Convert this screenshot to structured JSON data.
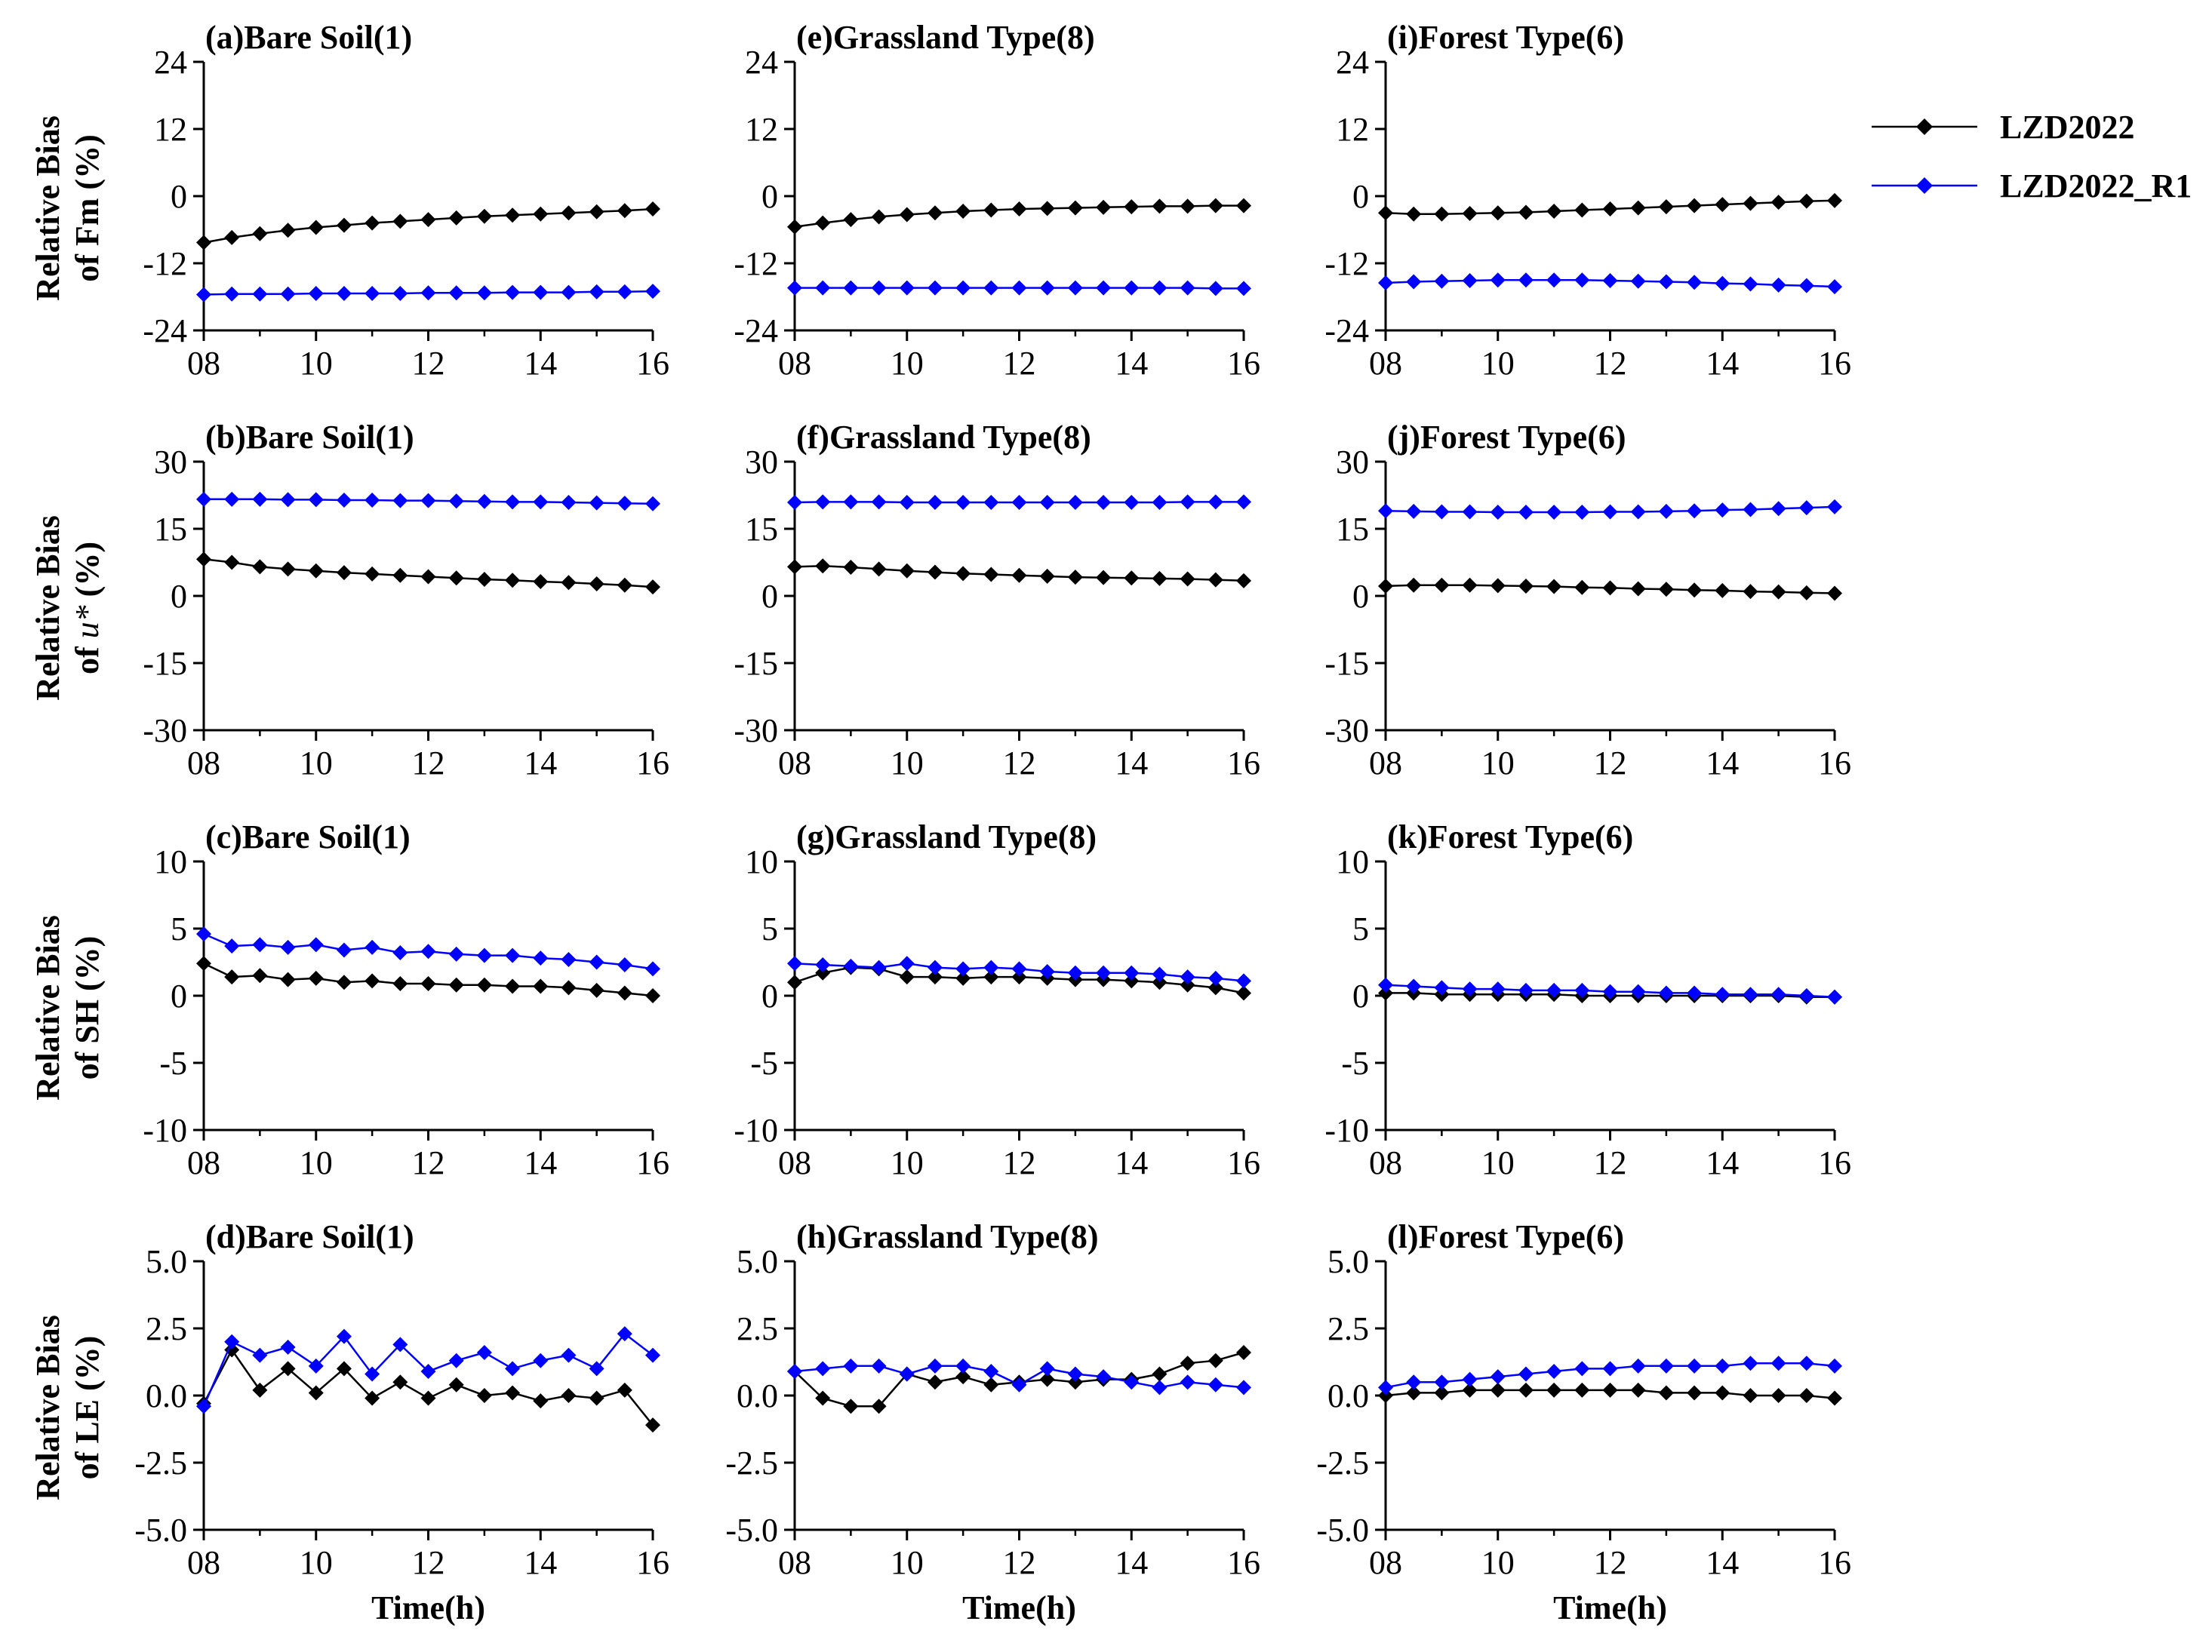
{
  "figure": {
    "x_title": "Time(h)",
    "row_ylabels": [
      [
        "Relative Bias",
        "of Fm (%)"
      ],
      [
        "Relative Bias",
        "of u* (%)"
      ],
      [
        "Relative Bias",
        "of SH (%)"
      ],
      [
        "Relative Bias",
        "of LE (%)"
      ]
    ]
  },
  "legend": {
    "entries": [
      {
        "label": "LZD2022",
        "color": "#000000",
        "marker": "diamond"
      },
      {
        "label": "LZD2022_R1",
        "color": "#0000ff",
        "marker": "diamond"
      }
    ]
  },
  "chart_data": [
    {
      "type": "line",
      "title": "(a)Bare Soil(1)",
      "xlabel": "",
      "ylabel": "Relative Bias of Fm (%)",
      "xlim": [
        8,
        16
      ],
      "ylim": [
        -24,
        24
      ],
      "yticks": [
        "24",
        "12",
        "0",
        "-12",
        "-24"
      ],
      "xticks": [
        "08",
        "10",
        "12",
        "14",
        "16"
      ],
      "x": [
        8,
        8.5,
        9,
        9.5,
        10,
        10.5,
        11,
        11.5,
        12,
        12.5,
        13,
        13.5,
        14,
        14.5,
        15,
        15.5,
        16
      ],
      "series": [
        {
          "name": "LZD2022",
          "color": "#000000",
          "values": [
            -8.3,
            -7.4,
            -6.7,
            -6.1,
            -5.6,
            -5.2,
            -4.8,
            -4.5,
            -4.2,
            -3.9,
            -3.6,
            -3.4,
            -3.2,
            -3.0,
            -2.8,
            -2.6,
            -2.3
          ]
        },
        {
          "name": "LZD2022_R1",
          "color": "#0000ff",
          "values": [
            -17.6,
            -17.5,
            -17.5,
            -17.5,
            -17.4,
            -17.4,
            -17.4,
            -17.4,
            -17.3,
            -17.3,
            -17.3,
            -17.2,
            -17.2,
            -17.2,
            -17.1,
            -17.1,
            -17.0
          ]
        }
      ]
    },
    {
      "type": "line",
      "title": "(b)Bare Soil(1)",
      "xlabel": "",
      "ylabel": "Relative Bias of u* (%)",
      "xlim": [
        8,
        16
      ],
      "ylim": [
        -30,
        30
      ],
      "yticks": [
        "30",
        "15",
        "0",
        "-15",
        "-30"
      ],
      "xticks": [
        "08",
        "10",
        "12",
        "14",
        "16"
      ],
      "x": [
        8,
        8.5,
        9,
        9.5,
        10,
        10.5,
        11,
        11.5,
        12,
        12.5,
        13,
        13.5,
        14,
        14.5,
        15,
        15.5,
        16
      ],
      "series": [
        {
          "name": "LZD2022",
          "color": "#000000",
          "values": [
            8.2,
            7.5,
            6.5,
            6.0,
            5.6,
            5.2,
            4.9,
            4.6,
            4.3,
            4.0,
            3.7,
            3.5,
            3.2,
            3.0,
            2.7,
            2.4,
            2.0
          ]
        },
        {
          "name": "LZD2022_R1",
          "color": "#0000ff",
          "values": [
            21.6,
            21.6,
            21.6,
            21.5,
            21.5,
            21.4,
            21.4,
            21.3,
            21.3,
            21.2,
            21.1,
            21.0,
            21.0,
            20.9,
            20.8,
            20.7,
            20.6
          ]
        }
      ]
    },
    {
      "type": "line",
      "title": "(c)Bare Soil(1)",
      "xlabel": "",
      "ylabel": "Relative Bias of SH (%)",
      "xlim": [
        8,
        16
      ],
      "ylim": [
        -10,
        10
      ],
      "yticks": [
        "10",
        "5",
        "0",
        "-5",
        "-10"
      ],
      "xticks": [
        "08",
        "10",
        "12",
        "14",
        "16"
      ],
      "x": [
        8,
        8.5,
        9,
        9.5,
        10,
        10.5,
        11,
        11.5,
        12,
        12.5,
        13,
        13.5,
        14,
        14.5,
        15,
        15.5,
        16
      ],
      "series": [
        {
          "name": "LZD2022",
          "color": "#000000",
          "values": [
            2.4,
            1.4,
            1.5,
            1.2,
            1.3,
            1.0,
            1.1,
            0.9,
            0.9,
            0.8,
            0.8,
            0.7,
            0.7,
            0.6,
            0.4,
            0.2,
            0.0
          ]
        },
        {
          "name": "LZD2022_R1",
          "color": "#0000ff",
          "values": [
            4.6,
            3.7,
            3.8,
            3.6,
            3.8,
            3.4,
            3.6,
            3.2,
            3.3,
            3.1,
            3.0,
            3.0,
            2.8,
            2.7,
            2.5,
            2.3,
            2.0
          ]
        }
      ]
    },
    {
      "type": "line",
      "title": "(d)Bare Soil(1)",
      "xlabel": "Time(h)",
      "ylabel": "Relative Bias of LE (%)",
      "xlim": [
        8,
        16
      ],
      "ylim": [
        -5,
        5
      ],
      "yticks": [
        "5.0",
        "2.5",
        "0.0",
        "-2.5",
        "-5.0"
      ],
      "xticks": [
        "08",
        "10",
        "12",
        "14",
        "16"
      ],
      "x": [
        8,
        8.5,
        9,
        9.5,
        10,
        10.5,
        11,
        11.5,
        12,
        12.5,
        13,
        13.5,
        14,
        14.5,
        15,
        15.5,
        16
      ],
      "series": [
        {
          "name": "LZD2022",
          "color": "#000000",
          "values": [
            -0.3,
            1.7,
            0.2,
            1.0,
            0.1,
            1.0,
            -0.1,
            0.5,
            -0.1,
            0.4,
            0.0,
            0.1,
            -0.2,
            0.0,
            -0.1,
            0.2,
            -1.1
          ]
        },
        {
          "name": "LZD2022_R1",
          "color": "#0000ff",
          "values": [
            -0.4,
            2.0,
            1.5,
            1.8,
            1.1,
            2.2,
            0.8,
            1.9,
            0.9,
            1.3,
            1.6,
            1.0,
            1.3,
            1.5,
            1.0,
            2.3,
            1.5
          ]
        }
      ]
    },
    {
      "type": "line",
      "title": "(e)Grassland Type(8)",
      "xlabel": "",
      "ylabel": "",
      "xlim": [
        8,
        16
      ],
      "ylim": [
        -24,
        24
      ],
      "yticks": [
        "24",
        "12",
        "0",
        "-12",
        "-24"
      ],
      "xticks": [
        "08",
        "10",
        "12",
        "14",
        "16"
      ],
      "x": [
        8,
        8.5,
        9,
        9.5,
        10,
        10.5,
        11,
        11.5,
        12,
        12.5,
        13,
        13.5,
        14,
        14.5,
        15,
        15.5,
        16
      ],
      "series": [
        {
          "name": "LZD2022",
          "color": "#000000",
          "values": [
            -5.5,
            -4.8,
            -4.2,
            -3.7,
            -3.3,
            -3.0,
            -2.7,
            -2.5,
            -2.3,
            -2.2,
            -2.1,
            -2.0,
            -1.9,
            -1.8,
            -1.8,
            -1.7,
            -1.7
          ]
        },
        {
          "name": "LZD2022_R1",
          "color": "#0000ff",
          "values": [
            -16.4,
            -16.4,
            -16.4,
            -16.4,
            -16.4,
            -16.4,
            -16.4,
            -16.4,
            -16.4,
            -16.4,
            -16.4,
            -16.4,
            -16.4,
            -16.4,
            -16.4,
            -16.5,
            -16.5
          ]
        }
      ]
    },
    {
      "type": "line",
      "title": "(f)Grassland Type(8)",
      "xlabel": "",
      "ylabel": "",
      "xlim": [
        8,
        16
      ],
      "ylim": [
        -30,
        30
      ],
      "yticks": [
        "30",
        "15",
        "0",
        "-15",
        "-30"
      ],
      "xticks": [
        "08",
        "10",
        "12",
        "14",
        "16"
      ],
      "x": [
        8,
        8.5,
        9,
        9.5,
        10,
        10.5,
        11,
        11.5,
        12,
        12.5,
        13,
        13.5,
        14,
        14.5,
        15,
        15.5,
        16
      ],
      "series": [
        {
          "name": "LZD2022",
          "color": "#000000",
          "values": [
            6.5,
            6.7,
            6.4,
            6.0,
            5.6,
            5.3,
            5.0,
            4.8,
            4.6,
            4.4,
            4.2,
            4.1,
            4.0,
            3.9,
            3.8,
            3.6,
            3.4
          ]
        },
        {
          "name": "LZD2022_R1",
          "color": "#0000ff",
          "values": [
            20.9,
            21.0,
            21.0,
            21.0,
            20.9,
            20.9,
            20.9,
            20.9,
            20.9,
            20.9,
            20.9,
            20.9,
            20.9,
            20.9,
            21.0,
            21.0,
            21.0
          ]
        }
      ]
    },
    {
      "type": "line",
      "title": "(g)Grassland Type(8)",
      "xlabel": "",
      "ylabel": "",
      "xlim": [
        8,
        16
      ],
      "ylim": [
        -10,
        10
      ],
      "yticks": [
        "10",
        "5",
        "0",
        "-5",
        "-10"
      ],
      "xticks": [
        "08",
        "10",
        "12",
        "14",
        "16"
      ],
      "x": [
        8,
        8.5,
        9,
        9.5,
        10,
        10.5,
        11,
        11.5,
        12,
        12.5,
        13,
        13.5,
        14,
        14.5,
        15,
        15.5,
        16
      ],
      "series": [
        {
          "name": "LZD2022",
          "color": "#000000",
          "values": [
            1.0,
            1.7,
            2.1,
            2.0,
            1.4,
            1.4,
            1.3,
            1.4,
            1.4,
            1.3,
            1.2,
            1.2,
            1.1,
            1.0,
            0.8,
            0.6,
            0.2
          ]
        },
        {
          "name": "LZD2022_R1",
          "color": "#0000ff",
          "values": [
            2.4,
            2.3,
            2.2,
            2.1,
            2.4,
            2.1,
            2.0,
            2.1,
            2.0,
            1.8,
            1.7,
            1.7,
            1.7,
            1.6,
            1.4,
            1.3,
            1.1
          ]
        }
      ]
    },
    {
      "type": "line",
      "title": "(h)Grassland Type(8)",
      "xlabel": "Time(h)",
      "ylabel": "",
      "xlim": [
        8,
        16
      ],
      "ylim": [
        -5,
        5
      ],
      "yticks": [
        "5.0",
        "2.5",
        "0.0",
        "-2.5",
        "-5.0"
      ],
      "xticks": [
        "08",
        "10",
        "12",
        "14",
        "16"
      ],
      "x": [
        8,
        8.5,
        9,
        9.5,
        10,
        10.5,
        11,
        11.5,
        12,
        12.5,
        13,
        13.5,
        14,
        14.5,
        15,
        15.5,
        16
      ],
      "series": [
        {
          "name": "LZD2022",
          "color": "#000000",
          "values": [
            0.9,
            -0.1,
            -0.4,
            -0.4,
            0.8,
            0.5,
            0.7,
            0.4,
            0.5,
            0.6,
            0.5,
            0.6,
            0.6,
            0.8,
            1.2,
            1.3,
            1.6
          ]
        },
        {
          "name": "LZD2022_R1",
          "color": "#0000ff",
          "values": [
            0.9,
            1.0,
            1.1,
            1.1,
            0.8,
            1.1,
            1.1,
            0.9,
            0.4,
            1.0,
            0.8,
            0.7,
            0.5,
            0.3,
            0.5,
            0.4,
            0.3
          ]
        }
      ]
    },
    {
      "type": "line",
      "title": "(i)Forest Type(6)",
      "xlabel": "",
      "ylabel": "",
      "xlim": [
        8,
        16
      ],
      "ylim": [
        -24,
        24
      ],
      "yticks": [
        "24",
        "12",
        "0",
        "-12",
        "-24"
      ],
      "xticks": [
        "08",
        "10",
        "12",
        "14",
        "16"
      ],
      "x": [
        8,
        8.5,
        9,
        9.5,
        10,
        10.5,
        11,
        11.5,
        12,
        12.5,
        13,
        13.5,
        14,
        14.5,
        15,
        15.5,
        16
      ],
      "series": [
        {
          "name": "LZD2022",
          "color": "#000000",
          "values": [
            -3.0,
            -3.2,
            -3.2,
            -3.1,
            -3.0,
            -2.9,
            -2.7,
            -2.5,
            -2.3,
            -2.1,
            -1.9,
            -1.7,
            -1.5,
            -1.3,
            -1.1,
            -0.9,
            -0.8
          ]
        },
        {
          "name": "LZD2022_R1",
          "color": "#0000ff",
          "values": [
            -15.5,
            -15.3,
            -15.2,
            -15.1,
            -15.0,
            -15.0,
            -15.0,
            -15.0,
            -15.1,
            -15.2,
            -15.3,
            -15.4,
            -15.6,
            -15.7,
            -15.9,
            -16.0,
            -16.2
          ]
        }
      ]
    },
    {
      "type": "line",
      "title": "(j)Forest Type(6)",
      "xlabel": "",
      "ylabel": "",
      "xlim": [
        8,
        16
      ],
      "ylim": [
        -30,
        30
      ],
      "yticks": [
        "30",
        "15",
        "0",
        "-15",
        "-30"
      ],
      "xticks": [
        "08",
        "10",
        "12",
        "14",
        "16"
      ],
      "x": [
        8,
        8.5,
        9,
        9.5,
        10,
        10.5,
        11,
        11.5,
        12,
        12.5,
        13,
        13.5,
        14,
        14.5,
        15,
        15.5,
        16
      ],
      "series": [
        {
          "name": "LZD2022",
          "color": "#000000",
          "values": [
            2.2,
            2.4,
            2.4,
            2.4,
            2.3,
            2.2,
            2.1,
            1.9,
            1.8,
            1.6,
            1.5,
            1.3,
            1.2,
            1.0,
            0.9,
            0.7,
            0.6
          ]
        },
        {
          "name": "LZD2022_R1",
          "color": "#0000ff",
          "values": [
            19.0,
            18.9,
            18.8,
            18.8,
            18.7,
            18.7,
            18.7,
            18.7,
            18.8,
            18.8,
            18.9,
            19.0,
            19.2,
            19.3,
            19.5,
            19.7,
            19.9
          ]
        }
      ]
    },
    {
      "type": "line",
      "title": "(k)Forest Type(6)",
      "xlabel": "",
      "ylabel": "",
      "xlim": [
        8,
        16
      ],
      "ylim": [
        -10,
        10
      ],
      "yticks": [
        "10",
        "5",
        "0",
        "-5",
        "-10"
      ],
      "xticks": [
        "08",
        "10",
        "12",
        "14",
        "16"
      ],
      "x": [
        8,
        8.5,
        9,
        9.5,
        10,
        10.5,
        11,
        11.5,
        12,
        12.5,
        13,
        13.5,
        14,
        14.5,
        15,
        15.5,
        16
      ],
      "series": [
        {
          "name": "LZD2022",
          "color": "#000000",
          "values": [
            0.2,
            0.2,
            0.1,
            0.1,
            0.1,
            0.1,
            0.1,
            0.0,
            0.0,
            0.0,
            0.0,
            0.0,
            0.0,
            0.0,
            0.0,
            -0.1,
            -0.1
          ]
        },
        {
          "name": "LZD2022_R1",
          "color": "#0000ff",
          "values": [
            0.8,
            0.7,
            0.6,
            0.5,
            0.5,
            0.4,
            0.4,
            0.4,
            0.3,
            0.3,
            0.2,
            0.2,
            0.1,
            0.1,
            0.1,
            0.0,
            -0.1
          ]
        }
      ]
    },
    {
      "type": "line",
      "title": "(l)Forest Type(6)",
      "xlabel": "Time(h)",
      "ylabel": "",
      "xlim": [
        8,
        16
      ],
      "ylim": [
        -5,
        5
      ],
      "yticks": [
        "5.0",
        "2.5",
        "0.0",
        "-2.5",
        "-5.0"
      ],
      "xticks": [
        "08",
        "10",
        "12",
        "14",
        "16"
      ],
      "x": [
        8,
        8.5,
        9,
        9.5,
        10,
        10.5,
        11,
        11.5,
        12,
        12.5,
        13,
        13.5,
        14,
        14.5,
        15,
        15.5,
        16
      ],
      "series": [
        {
          "name": "LZD2022",
          "color": "#000000",
          "values": [
            0.0,
            0.1,
            0.1,
            0.2,
            0.2,
            0.2,
            0.2,
            0.2,
            0.2,
            0.2,
            0.1,
            0.1,
            0.1,
            0.0,
            0.0,
            0.0,
            -0.1
          ]
        },
        {
          "name": "LZD2022_R1",
          "color": "#0000ff",
          "values": [
            0.3,
            0.5,
            0.5,
            0.6,
            0.7,
            0.8,
            0.9,
            1.0,
            1.0,
            1.1,
            1.1,
            1.1,
            1.1,
            1.2,
            1.2,
            1.2,
            1.1
          ]
        }
      ]
    }
  ]
}
